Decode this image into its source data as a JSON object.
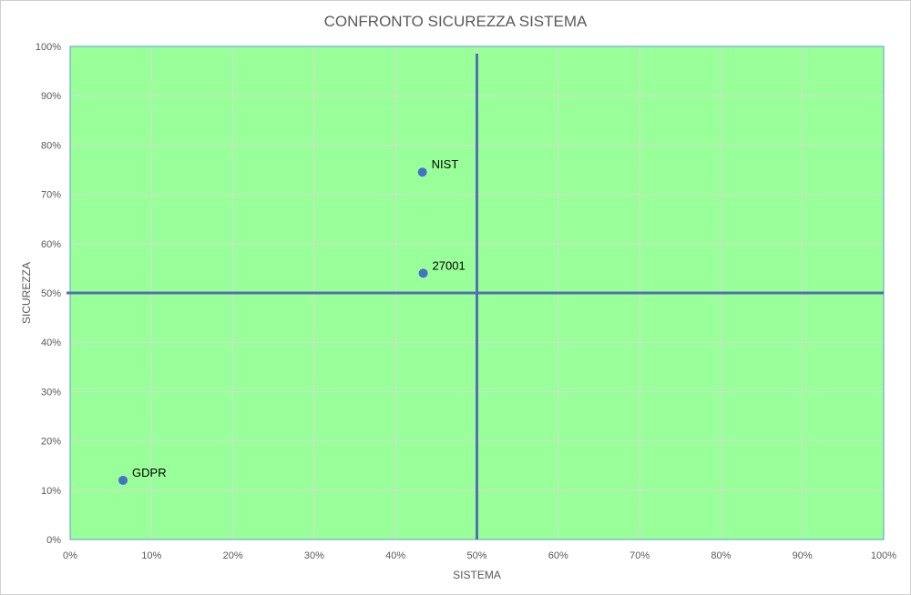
{
  "colors": {
    "plot_background": "#99ff99",
    "gridline": "#d9d9d9",
    "plot_border": "#5b9bd5",
    "quadrant_line": "#5470b0",
    "point": "#4472c4",
    "text": "#595959"
  },
  "chart_data": {
    "type": "scatter",
    "title": "CONFRONTO SICUREZZA SISTEMA",
    "xlabel": "SISTEMA",
    "ylabel": "SICUREZZA",
    "xlim": [
      0,
      1
    ],
    "ylim": [
      0,
      1
    ],
    "x_ticks": [
      "0%",
      "10%",
      "20%",
      "30%",
      "40%",
      "50%",
      "60%",
      "70%",
      "80%",
      "90%",
      "100%"
    ],
    "y_ticks": [
      "0%",
      "10%",
      "20%",
      "30%",
      "40%",
      "50%",
      "60%",
      "70%",
      "80%",
      "90%",
      "100%"
    ],
    "grid": true,
    "points": [
      {
        "label": "NIST",
        "x": 0.433,
        "y": 0.745
      },
      {
        "label": "27001",
        "x": 0.434,
        "y": 0.54
      },
      {
        "label": "GDPR",
        "x": 0.065,
        "y": 0.12
      }
    ],
    "quadrant_lines": {
      "x": 0.5,
      "y": 0.5
    }
  }
}
